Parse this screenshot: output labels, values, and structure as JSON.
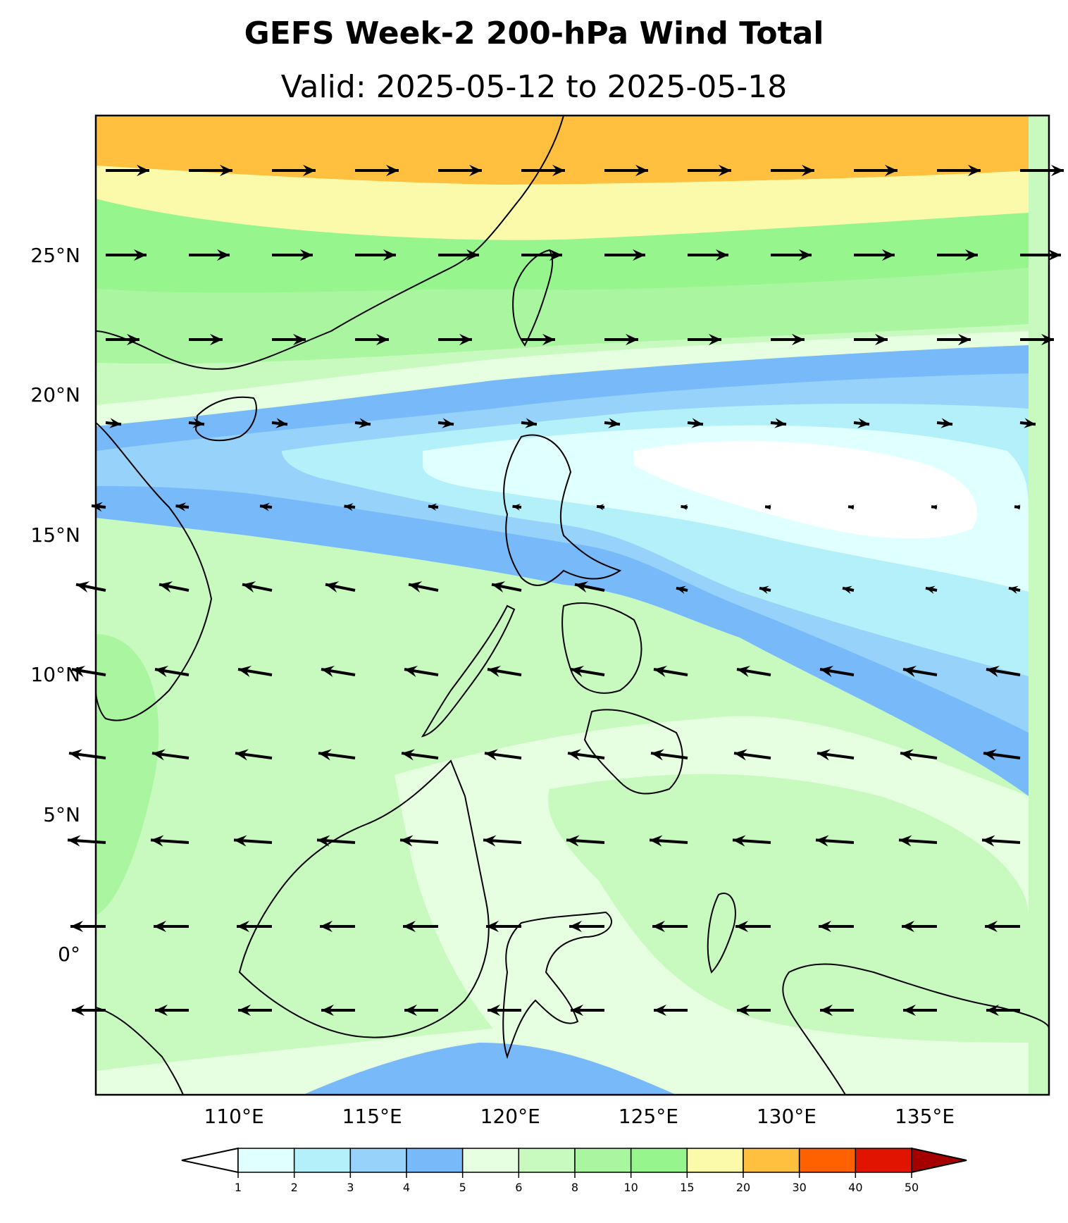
{
  "title": "GEFS Week-2 200-hPa Wind Total",
  "subtitle": "Valid: 2025-05-12 to 2025-05-18",
  "map": {
    "lon_range": [
      105,
      139.5
    ],
    "lat_range": [
      -5,
      30
    ],
    "lat_ticks": [
      {
        "value": 25,
        "label": "25°N"
      },
      {
        "value": 20,
        "label": "20°N"
      },
      {
        "value": 15,
        "label": "15°N"
      },
      {
        "value": 10,
        "label": "10°N"
      },
      {
        "value": 5,
        "label": "5°N"
      },
      {
        "value": 0,
        "label": "0°"
      }
    ],
    "lon_ticks": [
      {
        "value": 110,
        "label": "110°E"
      },
      {
        "value": 115,
        "label": "115°E"
      },
      {
        "value": 120,
        "label": "120°E"
      },
      {
        "value": 125,
        "label": "125°E"
      },
      {
        "value": 130,
        "label": "130°E"
      },
      {
        "value": 135,
        "label": "135°E"
      }
    ],
    "wind_field_note": "westerlies north of ~22N, easterlies south of ~18N"
  },
  "colorbar": {
    "levels": [
      "1",
      "2",
      "3",
      "4",
      "5",
      "6",
      "8",
      "10",
      "15",
      "20",
      "30",
      "40",
      "50"
    ],
    "colors": [
      "#e0ffff",
      "#b4f0fa",
      "#96d2fa",
      "#78b9fa",
      "#e6ffe1",
      "#c8fac0",
      "#aaf5a0",
      "#96f58c",
      "#fafaaa",
      "#ffc040",
      "#ff6000",
      "#e01400",
      "#a50000"
    ],
    "under_color": "#ffffff",
    "over_color": "#a50000"
  }
}
